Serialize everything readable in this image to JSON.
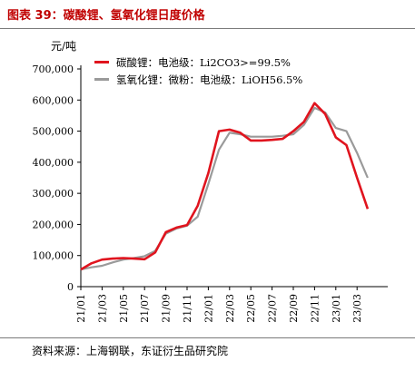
{
  "figure_title": "图表 39：碳酸锂、氢氧化锂日度价格",
  "source_note": "资料来源：上海钢联，东证衍生品研究院",
  "colors": {
    "title": "#c00000",
    "series_1": "#e0141e",
    "series_2": "#9a9a9a"
  },
  "chart_data": {
    "type": "line",
    "unit_label": "元/吨",
    "ylim": [
      0,
      700000
    ],
    "y_ticks": [
      "0",
      "100,000",
      "200,000",
      "300,000",
      "400,000",
      "500,000",
      "600,000",
      "700,000"
    ],
    "x_ticks": [
      "21/01",
      "21/03",
      "21/05",
      "21/07",
      "21/09",
      "21/11",
      "22/01",
      "22/03",
      "22/05",
      "22/07",
      "22/09",
      "22/11",
      "23/01",
      "23/03"
    ],
    "grid": false,
    "legend_position": "top-left",
    "series": [
      {
        "name": "碳酸锂：电池级：Li2CO3>=99.5%",
        "color": "#e0141e",
        "points": [
          [
            "21/01",
            55000
          ],
          [
            "21/02",
            75000
          ],
          [
            "21/03",
            87000
          ],
          [
            "21/04",
            90000
          ],
          [
            "21/05",
            92000
          ],
          [
            "21/06",
            90000
          ],
          [
            "21/07",
            88000
          ],
          [
            "21/08",
            110000
          ],
          [
            "21/09",
            175000
          ],
          [
            "21/10",
            190000
          ],
          [
            "21/11",
            198000
          ],
          [
            "21/12",
            260000
          ],
          [
            "22/01",
            365000
          ],
          [
            "22/02",
            500000
          ],
          [
            "22/03",
            505000
          ],
          [
            "22/04",
            495000
          ],
          [
            "22/05",
            470000
          ],
          [
            "22/06",
            470000
          ],
          [
            "22/07",
            472000
          ],
          [
            "22/08",
            475000
          ],
          [
            "22/09",
            500000
          ],
          [
            "22/10",
            530000
          ],
          [
            "22/11",
            590000
          ],
          [
            "22/12",
            555000
          ],
          [
            "23/01",
            480000
          ],
          [
            "23/02",
            455000
          ],
          [
            "23/03",
            350000
          ],
          [
            "23/04",
            250000
          ]
        ]
      },
      {
        "name": "氢氧化锂：微粉：电池级：LiOH56.5%",
        "color": "#9a9a9a",
        "points": [
          [
            "21/01",
            55000
          ],
          [
            "21/02",
            62000
          ],
          [
            "21/03",
            67000
          ],
          [
            "21/04",
            78000
          ],
          [
            "21/05",
            87000
          ],
          [
            "21/06",
            92000
          ],
          [
            "21/07",
            98000
          ],
          [
            "21/08",
            115000
          ],
          [
            "21/09",
            170000
          ],
          [
            "21/10",
            187000
          ],
          [
            "21/11",
            196000
          ],
          [
            "21/12",
            225000
          ],
          [
            "22/01",
            330000
          ],
          [
            "22/02",
            440000
          ],
          [
            "22/03",
            495000
          ],
          [
            "22/04",
            490000
          ],
          [
            "22/05",
            482000
          ],
          [
            "22/06",
            482000
          ],
          [
            "22/07",
            482000
          ],
          [
            "22/08",
            485000
          ],
          [
            "22/09",
            490000
          ],
          [
            "22/10",
            520000
          ],
          [
            "22/11",
            575000
          ],
          [
            "22/12",
            560000
          ],
          [
            "23/01",
            510000
          ],
          [
            "23/02",
            500000
          ],
          [
            "23/03",
            430000
          ],
          [
            "23/04",
            350000
          ]
        ]
      }
    ]
  }
}
